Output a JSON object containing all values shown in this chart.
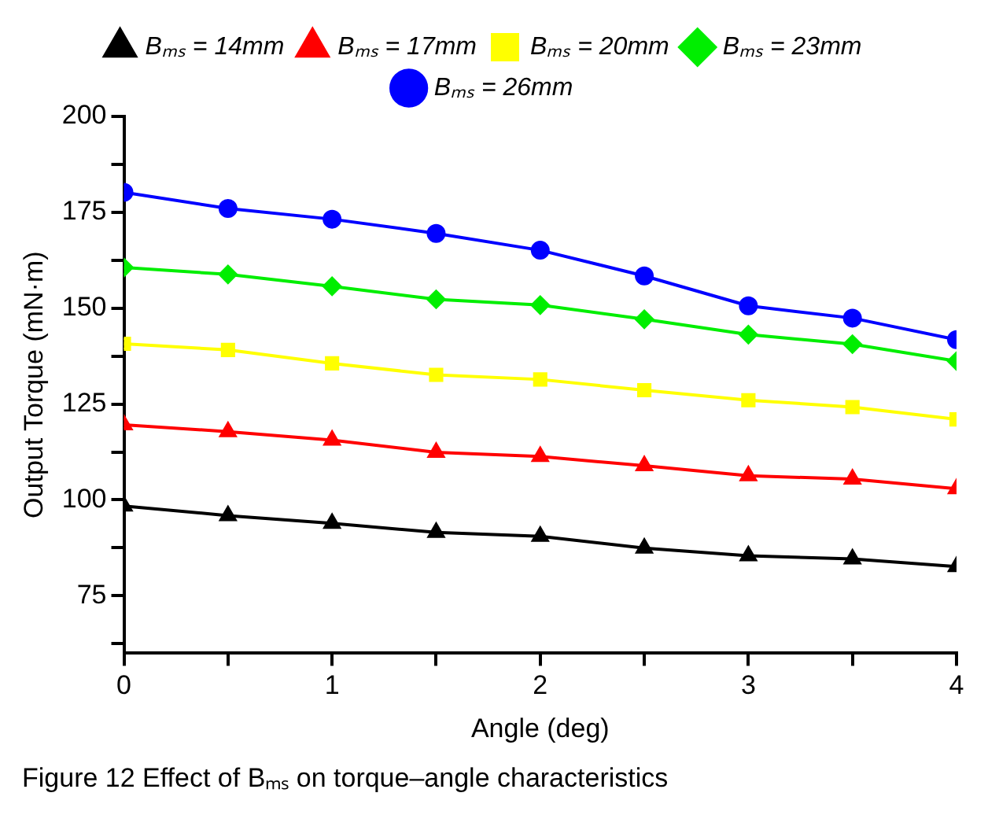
{
  "chart_data": {
    "type": "line",
    "xlabel": "Angle (deg)",
    "ylabel": "Output Torque (mN·m)",
    "annotations": [
      "Figure 12  Effect of Bₘₛ on torque–angle characteristics"
    ],
    "x": [
      0,
      0.5,
      1,
      1.5,
      2,
      2.5,
      3,
      3.5,
      4
    ],
    "xlim": [
      0,
      4
    ],
    "xticks": [
      0,
      {
        "value": 0.5,
        "label": null
      },
      1,
      {
        "value": 1.5,
        "label": null
      },
      2,
      {
        "value": 2.5,
        "label": null
      },
      3,
      {
        "value": 3.5,
        "label": null
      },
      4
    ],
    "ylim": [
      60,
      200
    ],
    "yticks": [
      {
        "value": 62.5,
        "label": null
      },
      75,
      {
        "value": 87.5,
        "label": null
      },
      100,
      {
        "value": 112.5,
        "label": null
      },
      125,
      {
        "value": 137.5,
        "label": null
      },
      150,
      {
        "value": 162.5,
        "label": null
      },
      175,
      {
        "value": 187.5,
        "label": null
      },
      200
    ],
    "grid": false,
    "legend": "top",
    "line_style": "solid",
    "series": [
      {
        "name": "Bₘₛ = 14mm",
        "color": "#000000",
        "marker": "triangle",
        "values": [
          98.4,
          95.9,
          93.9,
          91.5,
          90.5,
          87.4,
          85.4,
          84.6,
          82.6
        ]
      },
      {
        "name": "Bₘₛ = 17mm",
        "color": "#ff0000",
        "marker": "triangle",
        "values": [
          119.6,
          117.8,
          115.6,
          112.4,
          111.3,
          108.9,
          106.3,
          105.4,
          102.9
        ]
      },
      {
        "name": "Bₘₛ = 20mm",
        "color": "#ffff00",
        "marker": "square",
        "values": [
          140.7,
          139.1,
          135.6,
          132.6,
          131.4,
          128.6,
          126,
          124.2,
          121
        ]
      },
      {
        "name": "Bₘₛ = 23mm",
        "color": "#00ee00",
        "marker": "diamond",
        "values": [
          160.6,
          158.8,
          155.7,
          152.3,
          150.8,
          147.1,
          143.1,
          140.6,
          136.2
        ]
      },
      {
        "name": "Bₘₛ = 26mm",
        "color": "#0000ff",
        "marker": "circle",
        "values": [
          180.2,
          176,
          173.2,
          169.5,
          165.1,
          158.4,
          150.6,
          147.4,
          141.8
        ]
      }
    ]
  }
}
